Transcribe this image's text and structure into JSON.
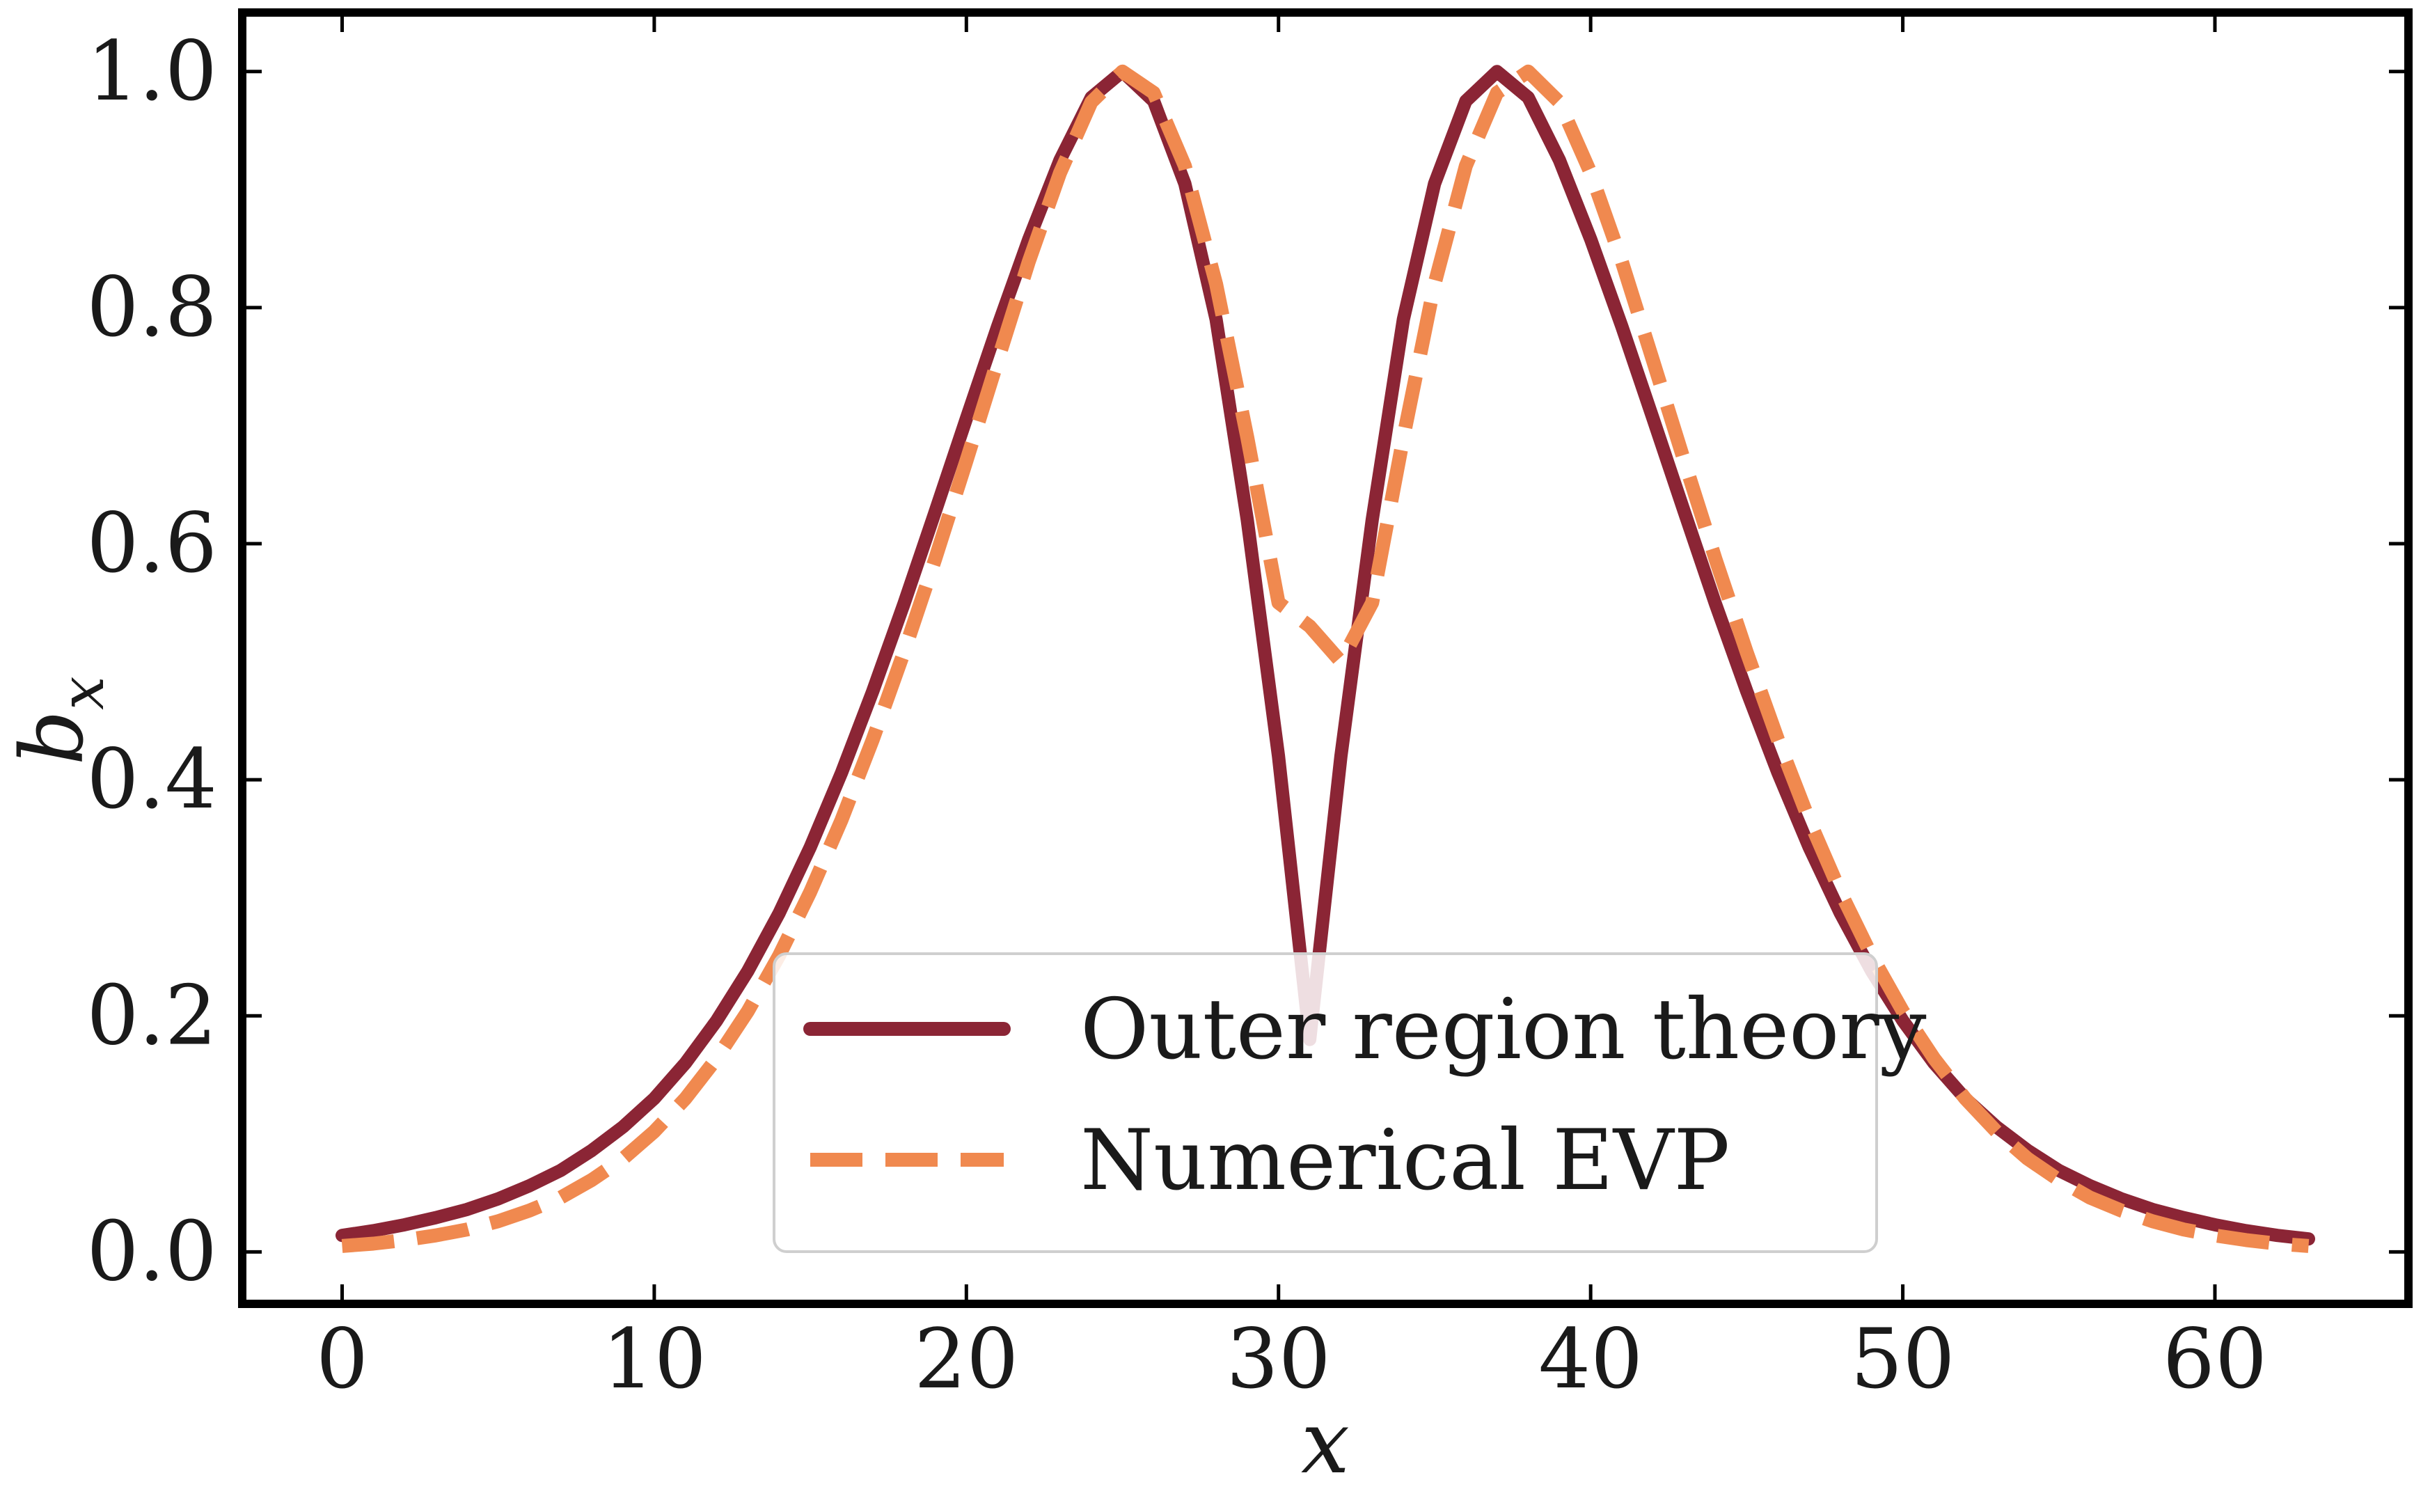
{
  "chart_data": {
    "type": "line",
    "title": "",
    "xlabel": "x",
    "ylabel": {
      "main": "b",
      "subscript": "x"
    },
    "xlim": [
      -3.2,
      66.2
    ],
    "ylim": [
      -0.044,
      1.05
    ],
    "xticks": [
      0,
      10,
      20,
      30,
      40,
      50,
      60
    ],
    "yticks": [
      0.0,
      0.2,
      0.4,
      0.6,
      0.8,
      1.0
    ],
    "xtick_labels": [
      "0",
      "10",
      "20",
      "30",
      "40",
      "50",
      "60"
    ],
    "ytick_labels": [
      "0.0",
      "0.2",
      "0.4",
      "0.6",
      "0.8",
      "1.0"
    ],
    "grid": false,
    "legend_position": "lower-center",
    "series": [
      {
        "name": "Outer region theory",
        "color": "#8b2535",
        "style": "solid",
        "x": [
          0,
          1,
          2,
          3,
          4,
          5,
          6,
          7,
          8,
          9,
          10,
          11,
          12,
          13,
          14,
          15,
          16,
          17,
          18,
          19,
          20,
          21,
          22,
          23,
          24,
          25,
          26,
          27,
          28,
          29,
          30,
          31,
          32,
          33,
          34,
          35,
          36,
          37,
          38,
          39,
          40,
          41,
          42,
          43,
          44,
          45,
          46,
          47,
          48,
          49,
          50,
          51,
          52,
          53,
          54,
          55,
          56,
          57,
          58,
          59,
          60,
          61,
          62,
          63
        ],
        "values": [
          0.014,
          0.018,
          0.023,
          0.029,
          0.036,
          0.045,
          0.056,
          0.069,
          0.086,
          0.106,
          0.13,
          0.16,
          0.196,
          0.238,
          0.287,
          0.343,
          0.406,
          0.475,
          0.549,
          0.627,
          0.706,
          0.784,
          0.858,
          0.925,
          0.978,
          1.0,
          0.975,
          0.905,
          0.79,
          0.62,
          0.42,
          0.18,
          0.42,
          0.62,
          0.79,
          0.905,
          0.975,
          1.0,
          0.978,
          0.925,
          0.858,
          0.784,
          0.706,
          0.627,
          0.549,
          0.475,
          0.406,
          0.343,
          0.287,
          0.238,
          0.196,
          0.16,
          0.13,
          0.106,
          0.086,
          0.069,
          0.056,
          0.045,
          0.036,
          0.029,
          0.023,
          0.018,
          0.014,
          0.011
        ]
      },
      {
        "name": "Numerical EVP",
        "color": "#f0894f",
        "style": "dashed",
        "x": [
          0,
          1,
          2,
          3,
          4,
          5,
          6,
          7,
          8,
          9,
          10,
          11,
          12,
          13,
          14,
          15,
          16,
          17,
          18,
          19,
          20,
          21,
          22,
          23,
          24,
          25,
          26,
          27,
          28,
          29,
          30,
          31,
          32,
          33,
          34,
          35,
          36,
          37,
          38,
          39,
          40,
          41,
          42,
          43,
          44,
          45,
          46,
          47,
          48,
          49,
          50,
          51,
          52,
          53,
          54,
          55,
          56,
          57,
          58,
          59,
          60,
          61,
          62,
          63
        ],
        "values": [
          0.005,
          0.007,
          0.01,
          0.014,
          0.019,
          0.026,
          0.035,
          0.046,
          0.061,
          0.079,
          0.102,
          0.13,
          0.164,
          0.204,
          0.251,
          0.305,
          0.366,
          0.434,
          0.508,
          0.587,
          0.67,
          0.755,
          0.839,
          0.914,
          0.974,
          1.0,
          0.982,
          0.92,
          0.82,
          0.69,
          0.55,
          0.53,
          0.5,
          0.55,
          0.69,
          0.82,
          0.92,
          0.982,
          1.0,
          0.974,
          0.914,
          0.839,
          0.755,
          0.67,
          0.587,
          0.508,
          0.434,
          0.366,
          0.305,
          0.251,
          0.204,
          0.164,
          0.13,
          0.102,
          0.079,
          0.061,
          0.046,
          0.035,
          0.026,
          0.019,
          0.014,
          0.01,
          0.007,
          0.005
        ]
      }
    ]
  }
}
